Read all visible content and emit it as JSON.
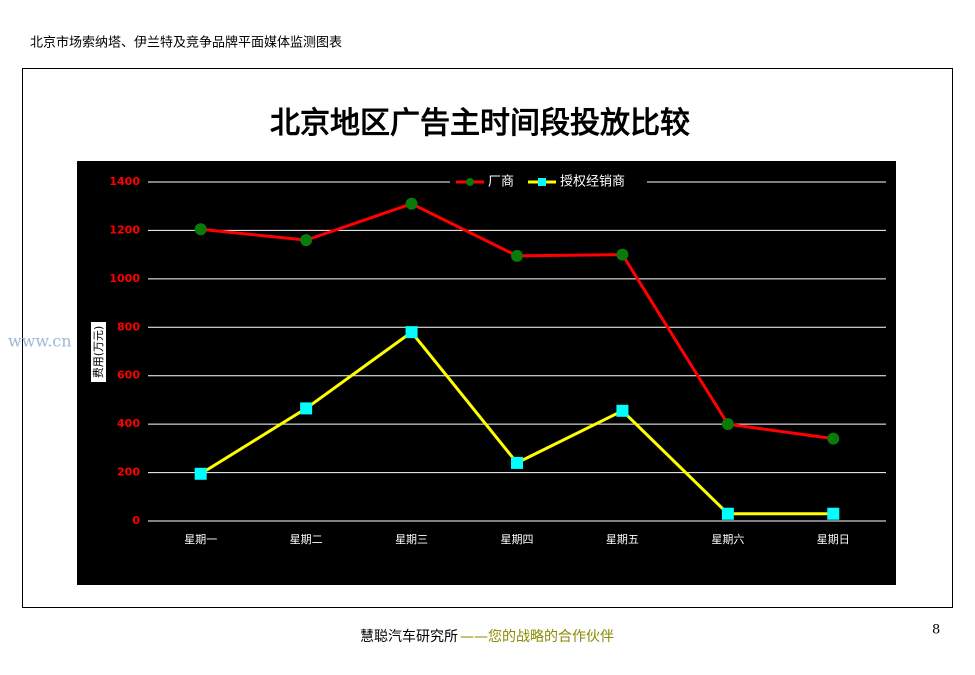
{
  "header": "北京市场索纳塔、伊兰特及竞争品牌平面媒体监测图表",
  "watermark": "www.cn",
  "chart_data": {
    "type": "line",
    "title": "北京地区广告主时间段投放比较",
    "y_label": "费用(万元)",
    "categories": [
      "星期一",
      "星期二",
      "星期三",
      "星期四",
      "星期五",
      "星期六",
      "星期日"
    ],
    "series": [
      {
        "name": "厂商",
        "color": "#ff0000",
        "marker": "circle",
        "marker_color": "#0a7a0a",
        "values": [
          1205,
          1160,
          1310,
          1095,
          1100,
          400,
          340
        ]
      },
      {
        "name": "授权经销商",
        "color": "#ffff00",
        "marker": "square",
        "marker_color": "#00ffff",
        "values": [
          195,
          465,
          780,
          240,
          455,
          30,
          30
        ]
      }
    ],
    "ylim": [
      0,
      1400
    ],
    "yticks": [
      0,
      200,
      400,
      600,
      800,
      1000,
      1200,
      1400
    ],
    "grid": true,
    "legend": "top"
  },
  "footer": {
    "org": "慧聪汽车研究所",
    "slogan": "——您的战略的合作伙伴",
    "page_number": "8"
  }
}
